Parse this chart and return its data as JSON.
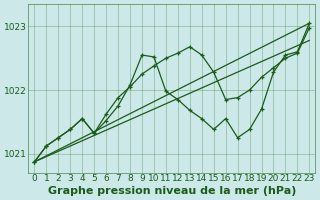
{
  "title": "Graphe pression niveau de la mer (hPa)",
  "bg_color": "#cce8e8",
  "grid_color": "#4a8a4a",
  "line_color": "#1a5c1a",
  "ylim": [
    1020.7,
    1023.35
  ],
  "yticks": [
    1021,
    1022,
    1023
  ],
  "xlim": [
    -0.5,
    23.5
  ],
  "xticks": [
    0,
    1,
    2,
    3,
    4,
    5,
    6,
    7,
    8,
    9,
    10,
    11,
    12,
    13,
    14,
    15,
    16,
    17,
    18,
    19,
    20,
    21,
    22,
    23
  ],
  "zigzag_x": [
    0,
    1,
    2,
    3,
    4,
    5,
    6,
    7,
    8,
    9,
    10,
    11,
    12,
    13,
    14,
    15,
    16,
    17,
    18,
    19,
    20,
    21,
    22,
    23
  ],
  "zigzag_y": [
    1020.87,
    1021.12,
    1021.25,
    1021.38,
    1021.55,
    1021.32,
    1021.52,
    1021.75,
    1022.08,
    1022.55,
    1022.52,
    1021.98,
    1021.85,
    1021.68,
    1021.55,
    1021.38,
    1021.55,
    1021.25,
    1021.38,
    1021.7,
    1022.28,
    1022.55,
    1022.6,
    1023.05
  ],
  "upper_x": [
    0,
    1,
    2,
    3,
    4,
    5,
    6,
    7,
    8,
    9,
    10,
    11,
    12,
    13,
    14,
    15,
    16,
    17,
    18,
    19,
    20,
    21,
    22,
    23
  ],
  "upper_y": [
    1020.87,
    1021.12,
    1021.25,
    1021.38,
    1021.55,
    1021.32,
    1021.62,
    1021.88,
    1022.05,
    1022.25,
    1022.38,
    1022.5,
    1022.58,
    1022.68,
    1022.55,
    1022.28,
    1021.85,
    1021.88,
    1022.0,
    1022.2,
    1022.35,
    1022.5,
    1022.58,
    1022.98
  ],
  "trend1_x": [
    0,
    23
  ],
  "trend1_y": [
    1020.87,
    1023.05
  ],
  "trend2_x": [
    0,
    23
  ],
  "trend2_y": [
    1020.87,
    1022.78
  ],
  "title_fontsize": 8,
  "tick_fontsize": 6.5,
  "lw": 0.9,
  "ms": 3.5
}
